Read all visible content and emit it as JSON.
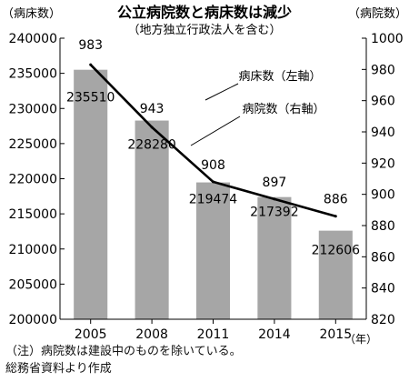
{
  "chart_data": {
    "type": "bar",
    "title": "公立病院数と病床数は減少",
    "subtitle": "（地方独立行政法人を含む）",
    "y_left_label": "（病床数）",
    "y_right_label": "（病院数）",
    "x_unit": "（年）",
    "categories": [
      "2005",
      "2008",
      "2011",
      "2014",
      "2015"
    ],
    "series": [
      {
        "name": "病床数（左軸）",
        "type": "bar",
        "axis": "left",
        "color": "#a6a6a6",
        "values": [
          235510,
          228280,
          219474,
          217392,
          212606
        ],
        "labels": [
          "235510",
          "228280",
          "219474",
          "217392",
          "212606"
        ]
      },
      {
        "name": "病院数（右軸）",
        "type": "line",
        "axis": "right",
        "color": "#000000",
        "values": [
          983,
          943,
          908,
          897,
          886
        ],
        "labels": [
          "983",
          "943",
          "908",
          "897",
          "886"
        ]
      }
    ],
    "ylim_left": [
      200000,
      240000
    ],
    "yticks_left": [
      "200000",
      "205000",
      "210000",
      "215000",
      "220000",
      "225000",
      "230000",
      "235000",
      "240000"
    ],
    "ylim_right": [
      820,
      1000
    ],
    "yticks_right": [
      "820",
      "840",
      "860",
      "880",
      "900",
      "920",
      "940",
      "960",
      "980",
      "1000"
    ],
    "grid": false,
    "notes": [
      "（注）病院数は建設中のものを除いている。",
      "総務省資料より作成"
    ]
  }
}
